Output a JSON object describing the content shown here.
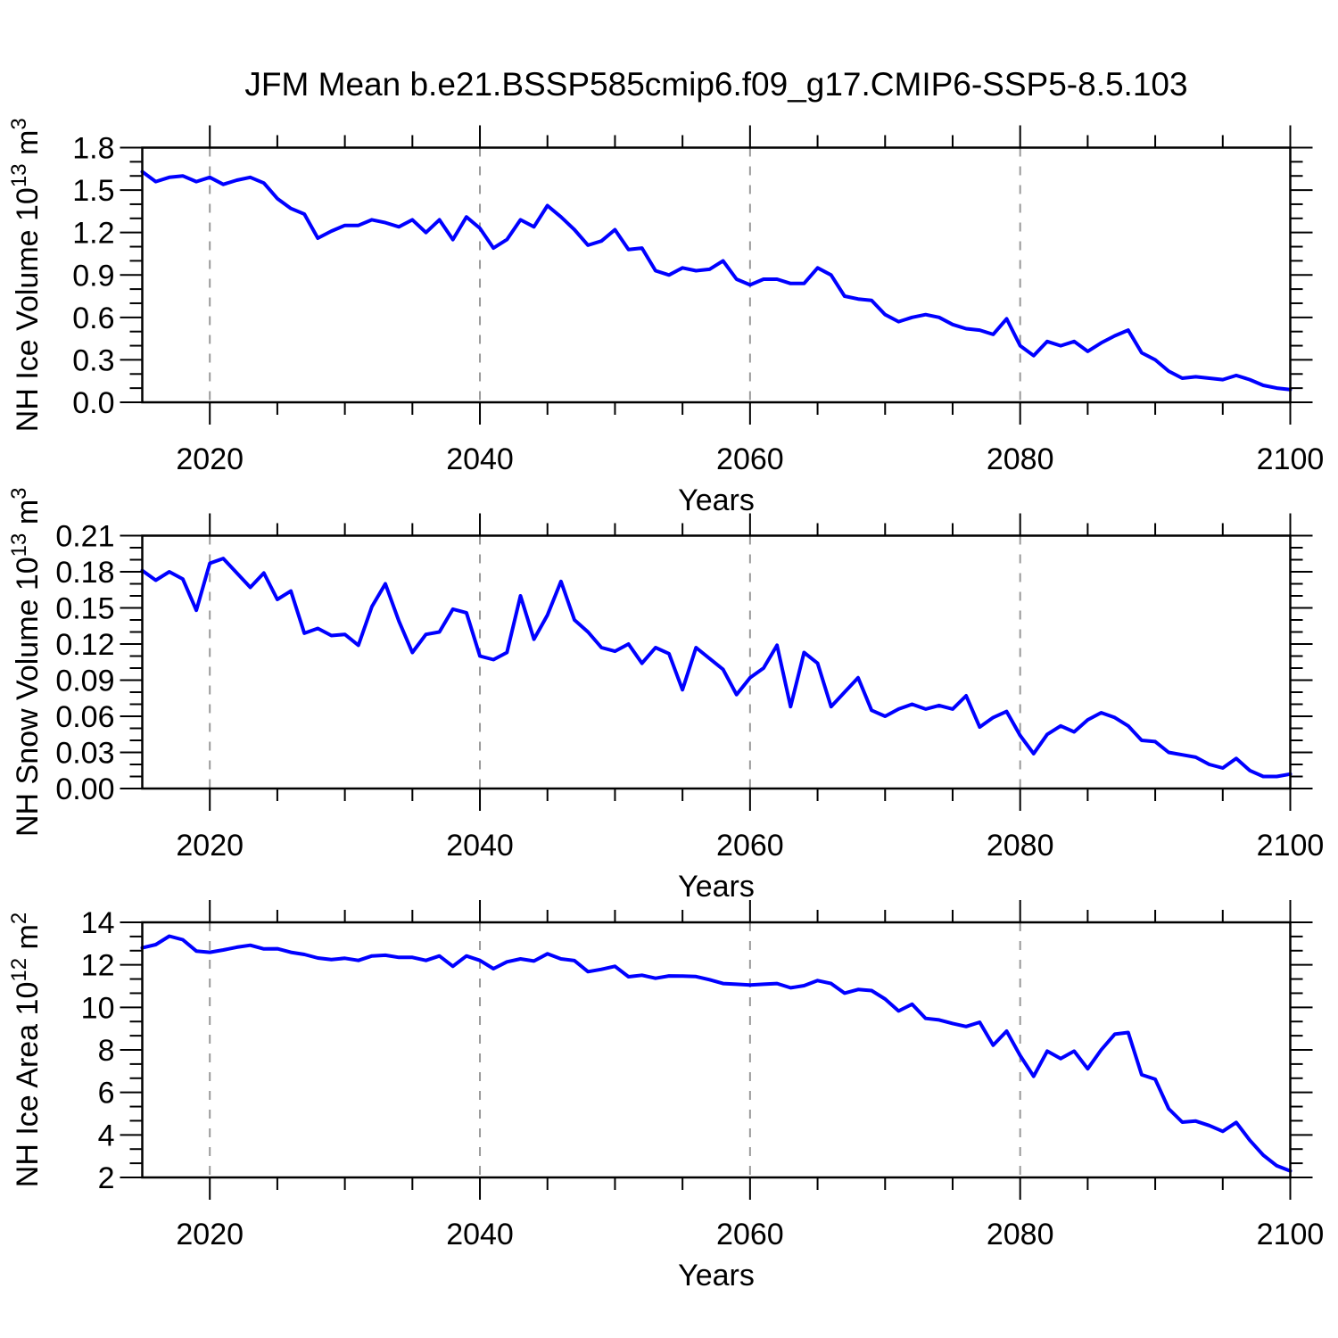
{
  "chart_data": {
    "type": "line",
    "title": "JFM Mean b.e21.BSSP585cmip6.f09_g17.CMIP6-SSP5-8.5.103",
    "line_color": "#0000ff",
    "gridline_color": "#999999",
    "x": {
      "label": "Years",
      "range": [
        2015,
        2100
      ],
      "tick_values": [
        2020,
        2040,
        2060,
        2080,
        2100
      ],
      "tick_labels": [
        "2020",
        "2040",
        "2060",
        "2080",
        "2100"
      ],
      "minor_step": 5,
      "gridline_years": [
        2020,
        2040,
        2060,
        2080
      ]
    },
    "years": [
      2015,
      2016,
      2017,
      2018,
      2019,
      2020,
      2021,
      2022,
      2023,
      2024,
      2025,
      2026,
      2027,
      2028,
      2029,
      2030,
      2031,
      2032,
      2033,
      2034,
      2035,
      2036,
      2037,
      2038,
      2039,
      2040,
      2041,
      2042,
      2043,
      2044,
      2045,
      2046,
      2047,
      2048,
      2049,
      2050,
      2051,
      2052,
      2053,
      2054,
      2055,
      2056,
      2057,
      2058,
      2059,
      2060,
      2061,
      2062,
      2063,
      2064,
      2065,
      2066,
      2067,
      2068,
      2069,
      2070,
      2071,
      2072,
      2073,
      2074,
      2075,
      2076,
      2077,
      2078,
      2079,
      2080,
      2081,
      2082,
      2083,
      2084,
      2085,
      2086,
      2087,
      2088,
      2089,
      2090,
      2091,
      2092,
      2093,
      2094,
      2095,
      2096,
      2097,
      2098,
      2099,
      2100
    ],
    "panels": [
      {
        "ylabel": "NH Ice Volume 10^13 m^3",
        "ylabel_parts": [
          {
            "text": "NH Ice Volume 10"
          },
          {
            "text": "13",
            "sup": true
          },
          {
            "text": " m"
          },
          {
            "text": "3",
            "sup": true
          }
        ],
        "ylim": [
          0,
          1.8
        ],
        "yticks": {
          "values": [
            0.0,
            0.3,
            0.6,
            0.9,
            1.2,
            1.5,
            1.8
          ],
          "labels": [
            "0.0",
            "0.3",
            "0.6",
            "0.9",
            "1.2",
            "1.5",
            "1.8"
          ]
        },
        "ymajor_step": 0.3,
        "yminor_step": 0.1,
        "values": [
          1.63,
          1.56,
          1.59,
          1.6,
          1.56,
          1.59,
          1.54,
          1.57,
          1.59,
          1.55,
          1.44,
          1.37,
          1.33,
          1.16,
          1.21,
          1.25,
          1.25,
          1.29,
          1.27,
          1.24,
          1.29,
          1.2,
          1.29,
          1.15,
          1.31,
          1.23,
          1.09,
          1.15,
          1.29,
          1.24,
          1.39,
          1.31,
          1.22,
          1.11,
          1.14,
          1.22,
          1.08,
          1.09,
          0.93,
          0.9,
          0.95,
          0.93,
          0.94,
          1.0,
          0.87,
          0.83,
          0.87,
          0.87,
          0.84,
          0.84,
          0.95,
          0.9,
          0.75,
          0.73,
          0.72,
          0.62,
          0.57,
          0.6,
          0.62,
          0.6,
          0.55,
          0.52,
          0.51,
          0.48,
          0.59,
          0.4,
          0.33,
          0.43,
          0.4,
          0.43,
          0.36,
          0.42,
          0.47,
          0.51,
          0.35,
          0.3,
          0.22,
          0.17,
          0.18,
          0.17,
          0.16,
          0.19,
          0.16,
          0.12,
          0.1,
          0.09
        ]
      },
      {
        "ylabel": "NH Snow Volume 10^13 m^3",
        "ylabel_parts": [
          {
            "text": "NH Snow Volume 10"
          },
          {
            "text": "13",
            "sup": true
          },
          {
            "text": " m"
          },
          {
            "text": "3",
            "sup": true
          }
        ],
        "ylim": [
          0,
          0.21
        ],
        "yticks": {
          "values": [
            0.0,
            0.03,
            0.06,
            0.09,
            0.12,
            0.15,
            0.18,
            0.21
          ],
          "labels": [
            "0.00",
            "0.03",
            "0.06",
            "0.09",
            "0.12",
            "0.15",
            "0.18",
            "0.21"
          ]
        },
        "ymajor_step": 0.03,
        "yminor_step": 0.01,
        "values": [
          0.181,
          0.173,
          0.18,
          0.174,
          0.148,
          0.187,
          0.191,
          0.179,
          0.167,
          0.179,
          0.157,
          0.164,
          0.129,
          0.133,
          0.127,
          0.128,
          0.119,
          0.151,
          0.17,
          0.139,
          0.113,
          0.128,
          0.13,
          0.149,
          0.146,
          0.11,
          0.107,
          0.113,
          0.16,
          0.124,
          0.144,
          0.172,
          0.14,
          0.13,
          0.117,
          0.114,
          0.12,
          0.104,
          0.117,
          0.112,
          0.082,
          0.117,
          0.108,
          0.099,
          0.078,
          0.092,
          0.1,
          0.119,
          0.068,
          0.113,
          0.104,
          0.068,
          0.08,
          0.092,
          0.065,
          0.06,
          0.066,
          0.07,
          0.066,
          0.069,
          0.066,
          0.077,
          0.051,
          0.059,
          0.064,
          0.044,
          0.029,
          0.045,
          0.052,
          0.047,
          0.057,
          0.063,
          0.059,
          0.052,
          0.04,
          0.039,
          0.03,
          0.028,
          0.026,
          0.02,
          0.017,
          0.025,
          0.015,
          0.01,
          0.01,
          0.012
        ]
      },
      {
        "ylabel": "NH Ice Area 10^12 m^2",
        "ylabel_parts": [
          {
            "text": "NH Ice Area 10"
          },
          {
            "text": "12",
            "sup": true
          },
          {
            "text": " m"
          },
          {
            "text": "2",
            "sup": true
          }
        ],
        "ylim": [
          2,
          14
        ],
        "yticks": {
          "values": [
            2,
            4,
            6,
            8,
            10,
            12,
            14
          ],
          "labels": [
            "2",
            "4",
            "6",
            "8",
            "10",
            "12",
            "14"
          ]
        },
        "ymajor_step": 2,
        "yminor_step": 0.6666667,
        "values": [
          12.8,
          12.95,
          13.35,
          13.18,
          12.65,
          12.59,
          12.7,
          12.83,
          12.92,
          12.75,
          12.76,
          12.59,
          12.49,
          12.32,
          12.25,
          12.31,
          12.21,
          12.42,
          12.45,
          12.35,
          12.35,
          12.21,
          12.42,
          11.93,
          12.42,
          12.21,
          11.82,
          12.14,
          12.28,
          12.18,
          12.52,
          12.28,
          12.2,
          11.68,
          11.79,
          11.93,
          11.44,
          11.51,
          11.37,
          11.48,
          11.47,
          11.45,
          11.3,
          11.12,
          11.09,
          11.05,
          11.09,
          11.12,
          10.92,
          11.02,
          11.26,
          11.12,
          10.67,
          10.84,
          10.79,
          10.39,
          9.83,
          10.15,
          9.48,
          9.41,
          9.24,
          9.1,
          9.3,
          8.22,
          8.88,
          7.73,
          6.76,
          7.94,
          7.59,
          7.94,
          7.11,
          8.0,
          8.74,
          8.82,
          6.83,
          6.62,
          5.23,
          4.6,
          4.65,
          4.44,
          4.17,
          4.59,
          3.75,
          3.05,
          2.55,
          2.3
        ]
      }
    ]
  }
}
